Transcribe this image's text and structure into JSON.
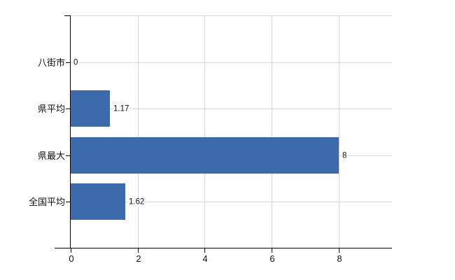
{
  "chart_data": {
    "type": "bar",
    "orientation": "horizontal",
    "title": "",
    "xlabel": "",
    "ylabel": "",
    "categories": [
      "八街市",
      "県平均",
      "県最大",
      "全国平均"
    ],
    "values": [
      0,
      1.17,
      8,
      1.62
    ],
    "value_labels": [
      "0",
      "1.17",
      "8",
      "1.62"
    ],
    "x_ticks": [
      0,
      2,
      4,
      6,
      8
    ],
    "x_tick_labels": [
      "0",
      "2",
      "4",
      "6",
      "8"
    ],
    "xlim": [
      0,
      9.6
    ],
    "grid": true,
    "legend": false,
    "colors": {
      "bar": "#3c6bac",
      "grid": "#d6d6d6",
      "axis": "#000000",
      "text": "#111111",
      "background": "#ffffff"
    }
  }
}
